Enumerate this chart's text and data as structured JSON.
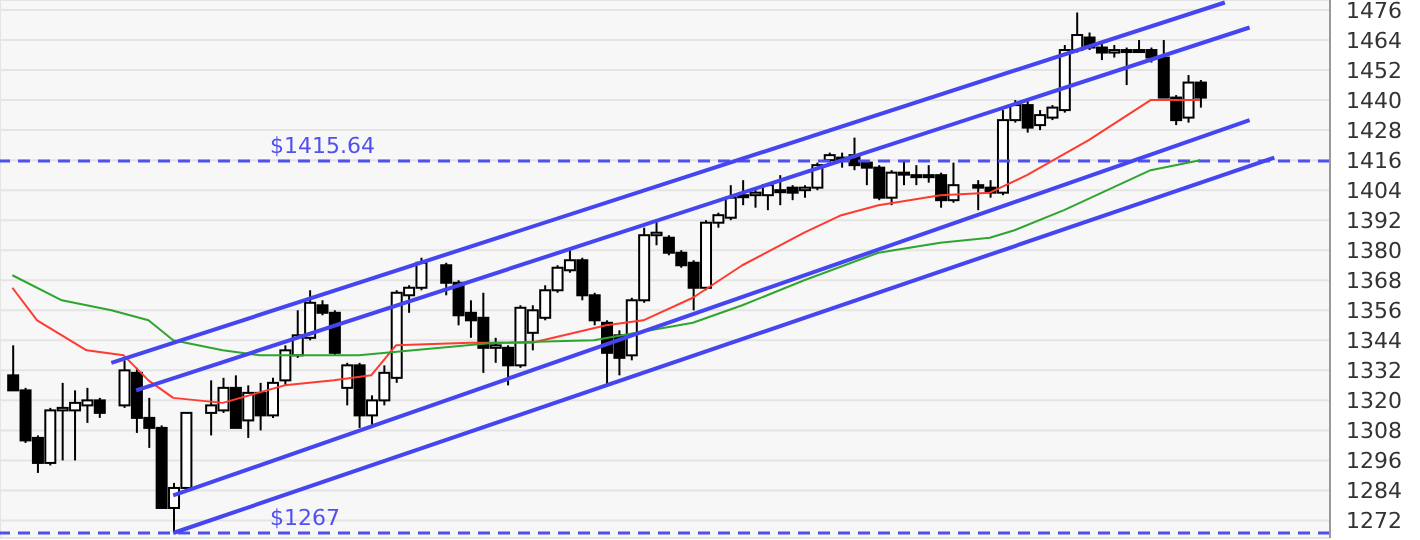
{
  "chart_data": {
    "type": "candlestick",
    "color": "#000000",
    "categories": [
      null,
      null,
      null,
      null,
      null,
      null,
      null,
      null,
      null,
      null,
      null,
      null,
      null,
      null,
      null,
      null,
      null,
      null,
      null,
      null,
      null,
      null,
      null,
      null,
      null,
      null,
      null,
      null,
      null,
      null,
      null,
      null,
      null,
      null,
      null,
      null,
      null,
      null,
      null,
      null,
      null,
      null,
      null,
      null,
      null,
      null,
      null,
      null,
      null,
      null,
      null,
      null,
      null,
      null,
      null,
      null,
      null,
      null,
      null,
      null,
      null,
      null,
      null,
      null,
      null,
      null,
      null,
      null,
      null,
      null,
      null,
      null,
      null,
      null,
      null,
      null,
      null,
      null,
      null,
      null,
      null,
      null,
      null,
      null,
      null,
      null,
      null,
      null,
      null,
      null,
      null,
      null,
      null,
      null,
      null,
      null,
      null,
      null,
      null,
      null,
      null,
      null,
      null,
      null,
      null,
      null
    ],
    "ohlc": [
      [
        1330,
        1342,
        1324,
        1324
      ],
      [
        1324,
        1325,
        1303,
        1304
      ],
      [
        1305,
        1306,
        1291,
        1295
      ],
      [
        1295,
        1317,
        1294,
        1316
      ],
      [
        1316,
        1327,
        1296,
        1317
      ],
      [
        1316,
        1324,
        1296,
        1319
      ],
      [
        1318,
        1325,
        1311,
        1320
      ],
      [
        1320,
        1321,
        1313,
        1315
      ],
      null,
      [
        1318,
        1336,
        1317,
        1332
      ],
      [
        1331,
        1333,
        1307,
        1313
      ],
      [
        1313,
        1321,
        1301,
        1309
      ],
      [
        1309,
        1310,
        1277,
        1277
      ],
      [
        1277,
        1287,
        1267,
        1285
      ],
      [
        1285,
        1315,
        1284,
        1315
      ],
      null,
      [
        1315,
        1328,
        1306,
        1318
      ],
      [
        1316,
        1329,
        1315,
        1325
      ],
      [
        1325,
        1330,
        1309,
        1309
      ],
      [
        1312,
        1326,
        1305,
        1323
      ],
      [
        1323,
        1327,
        1308,
        1314
      ],
      [
        1314,
        1329,
        1313,
        1327
      ],
      [
        1328,
        1342,
        1326,
        1340
      ],
      [
        1338,
        1356,
        1337,
        1346
      ],
      [
        1345,
        1364,
        1344,
        1359
      ],
      [
        1358,
        1360,
        1354,
        1355
      ],
      [
        1355,
        1356,
        1338,
        1339
      ],
      [
        1325,
        1335,
        1318,
        1334
      ],
      [
        1334,
        1335,
        1309,
        1314
      ],
      [
        1314,
        1322,
        1310,
        1320
      ],
      [
        1320,
        1334,
        1318,
        1331
      ],
      [
        1329,
        1364,
        1327,
        1363
      ],
      [
        1362,
        1366,
        1355,
        1365
      ],
      [
        1365,
        1377,
        1364,
        1375
      ],
      null,
      [
        1374,
        1375,
        1362,
        1367
      ],
      [
        1367,
        1368,
        1350,
        1354
      ],
      [
        1355,
        1360,
        1345,
        1352
      ],
      [
        1353,
        1363,
        1331,
        1341
      ],
      [
        1341,
        1345,
        1335,
        1342
      ],
      [
        1341,
        1342,
        1326,
        1334
      ],
      [
        1334,
        1358,
        1333,
        1357
      ],
      [
        1347,
        1358,
        1340,
        1356
      ],
      [
        1353,
        1366,
        1352,
        1364
      ],
      [
        1364,
        1374,
        1363,
        1373
      ],
      [
        1372,
        1381,
        1371,
        1376
      ],
      [
        1376,
        1377,
        1360,
        1362
      ],
      [
        1362,
        1363,
        1350,
        1352
      ],
      [
        1351,
        1352,
        1326,
        1339
      ],
      [
        1346,
        1348,
        1330,
        1337
      ],
      [
        1338,
        1361,
        1336,
        1360
      ],
      [
        1360,
        1389,
        1359,
        1386
      ],
      [
        1386,
        1392,
        1382,
        1387
      ],
      [
        1385,
        1386,
        1378,
        1379
      ],
      [
        1379,
        1380,
        1373,
        1374
      ],
      [
        1375,
        1376,
        1356,
        1365
      ],
      [
        1365,
        1392,
        1364,
        1391
      ],
      [
        1391,
        1395,
        1389,
        1394
      ],
      [
        1393,
        1406,
        1392,
        1401
      ],
      [
        1402,
        1408,
        1398,
        1402
      ],
      [
        1402,
        1404,
        1397,
        1403
      ],
      [
        1402,
        1406,
        1396,
        1406
      ],
      [
        1404,
        1410,
        1398,
        1404
      ],
      [
        1405,
        1406,
        1400,
        1403
      ],
      [
        1404,
        1406,
        1401,
        1405
      ],
      [
        1405,
        1415,
        1404,
        1414
      ],
      [
        1416,
        1419,
        1415,
        1418
      ],
      [
        1417,
        1419,
        1413,
        1417
      ],
      [
        1418,
        1425,
        1412,
        1414
      ],
      [
        1415,
        1416,
        1406,
        1413
      ],
      [
        1413,
        1414,
        1400,
        1401
      ],
      [
        1401,
        1412,
        1398,
        1411
      ],
      [
        1411,
        1416,
        1406,
        1411
      ],
      [
        1410,
        1414,
        1406,
        1410
      ],
      [
        1410,
        1414,
        1407,
        1410
      ],
      [
        1410,
        1411,
        1397,
        1400
      ],
      [
        1400,
        1415,
        1399,
        1406
      ],
      null,
      [
        1406,
        1408,
        1396,
        1405
      ],
      [
        1405,
        1408,
        1401,
        1403
      ],
      [
        1403,
        1436,
        1402,
        1432
      ],
      [
        1432,
        1440,
        1431,
        1438
      ],
      [
        1438,
        1440,
        1427,
        1429
      ],
      [
        1430,
        1436,
        1428,
        1434
      ],
      [
        1433,
        1438,
        1432,
        1437
      ],
      [
        1436,
        1462,
        1435,
        1460
      ],
      [
        1460,
        1475,
        1459,
        1466
      ],
      [
        1465,
        1467,
        1460,
        1461
      ],
      [
        1461,
        1463,
        1456,
        1459
      ],
      [
        1459,
        1462,
        1457,
        1460
      ],
      [
        1460,
        1461,
        1446,
        1460
      ],
      [
        1460,
        1464,
        1459,
        1460
      ],
      [
        1460,
        1461,
        1455,
        1457
      ],
      [
        1457,
        1464,
        1441,
        1441
      ],
      [
        1441,
        1442,
        1430,
        1432
      ],
      [
        1433,
        1450,
        1431,
        1447
      ],
      [
        1447,
        1448,
        1437,
        1441
      ],
      null,
      null,
      null,
      null,
      null,
      null,
      null,
      null,
      null
    ],
    "series": [
      {
        "type": "line",
        "color": "#ff3b30",
        "values": [
          1365,
          null,
          1352,
          null,
          null,
          null,
          1340,
          null,
          null,
          1338,
          null,
          1328,
          null,
          1321,
          null,
          null,
          null,
          1319,
          null,
          null,
          null,
          null,
          1326,
          null,
          null,
          null,
          1328,
          null,
          null,
          1330,
          null,
          1342,
          null,
          null,
          null,
          null,
          null,
          1343,
          null,
          null,
          null,
          null,
          1343,
          null,
          null,
          null,
          null,
          null,
          1350,
          null,
          null,
          1352,
          null,
          null,
          null,
          1361,
          null,
          null,
          null,
          1374,
          null,
          null,
          null,
          null,
          1387,
          null,
          null,
          1394,
          null,
          null,
          1398,
          null,
          null,
          null,
          null,
          1402,
          null,
          null,
          null,
          1403,
          null,
          null,
          1410,
          null,
          null,
          null,
          null,
          1424,
          null,
          null,
          null,
          null,
          1440,
          null,
          null,
          null,
          1440,
          null,
          null,
          null,
          null,
          null,
          null,
          null,
          null,
          null
        ]
      },
      {
        "type": "line",
        "color": "#2ea52e",
        "values": [
          1370,
          null,
          null,
          null,
          1360,
          null,
          null,
          null,
          1356,
          null,
          null,
          1352,
          null,
          1344,
          null,
          null,
          null,
          1340,
          null,
          null,
          1338,
          null,
          null,
          null,
          null,
          null,
          null,
          null,
          1338,
          null,
          null,
          null,
          null,
          null,
          null,
          null,
          null,
          null,
          null,
          1343,
          null,
          null,
          null,
          null,
          null,
          null,
          null,
          1344,
          null,
          null,
          null,
          null,
          null,
          null,
          null,
          1351,
          null,
          null,
          null,
          1358,
          null,
          null,
          null,
          null,
          1368,
          null,
          null,
          null,
          null,
          null,
          1379,
          null,
          null,
          null,
          null,
          1383,
          null,
          null,
          null,
          1385,
          null,
          1388,
          null,
          null,
          null,
          1396,
          null,
          null,
          null,
          null,
          null,
          null,
          1412,
          null,
          null,
          null,
          1416,
          null,
          null,
          null,
          null,
          null,
          null,
          null,
          null,
          null
        ]
      },
      {
        "type": "line",
        "color": "#4646f0",
        "values": [
          null,
          null,
          null,
          null,
          null,
          null,
          null,
          null,
          1335,
          null,
          null,
          null,
          null,
          null,
          null,
          null,
          null,
          null,
          null,
          null,
          null,
          null,
          null,
          null,
          null,
          null,
          null,
          null,
          null,
          null,
          null,
          null,
          null,
          null,
          null,
          null,
          null,
          null,
          null,
          null,
          null,
          null,
          null,
          null,
          null,
          null,
          null,
          null,
          null,
          null,
          null,
          null,
          null,
          null,
          null,
          null,
          null,
          null,
          null,
          null,
          null,
          null,
          null,
          null,
          null,
          null,
          null,
          null,
          null,
          null,
          null,
          null,
          null,
          null,
          null,
          null,
          null,
          null,
          null,
          null,
          null,
          null,
          null,
          null,
          null,
          null,
          null,
          null,
          null,
          null,
          null,
          null,
          null,
          null,
          null,
          null,
          null,
          null,
          1479,
          null,
          null,
          null,
          null,
          null,
          null,
          null
        ]
      },
      {
        "type": "line",
        "color": "#4646f0",
        "values": [
          null,
          null,
          null,
          null,
          null,
          null,
          null,
          null,
          null,
          null,
          1324,
          null,
          null,
          null,
          null,
          null,
          null,
          null,
          null,
          null,
          null,
          null,
          null,
          null,
          null,
          null,
          null,
          null,
          null,
          null,
          null,
          null,
          null,
          null,
          null,
          null,
          null,
          null,
          null,
          null,
          null,
          null,
          null,
          null,
          null,
          null,
          null,
          null,
          null,
          null,
          null,
          null,
          null,
          null,
          null,
          null,
          null,
          null,
          null,
          null,
          null,
          null,
          null,
          null,
          null,
          null,
          null,
          null,
          null,
          null,
          null,
          null,
          null,
          null,
          null,
          null,
          null,
          null,
          null,
          null,
          null,
          null,
          null,
          null,
          null,
          null,
          null,
          null,
          null,
          null,
          null,
          null,
          null,
          null,
          null,
          null,
          null,
          null,
          null,
          null,
          1469,
          null,
          null,
          null,
          null,
          null
        ]
      },
      {
        "type": "line",
        "color": "#4646f0",
        "values": [
          null,
          null,
          null,
          null,
          null,
          null,
          null,
          null,
          null,
          null,
          null,
          null,
          null,
          1282,
          null,
          null,
          null,
          null,
          null,
          null,
          null,
          null,
          null,
          null,
          null,
          null,
          null,
          null,
          null,
          null,
          null,
          null,
          null,
          null,
          null,
          null,
          null,
          null,
          null,
          null,
          null,
          null,
          null,
          null,
          null,
          null,
          null,
          null,
          null,
          null,
          null,
          null,
          null,
          null,
          null,
          null,
          null,
          null,
          null,
          null,
          null,
          null,
          null,
          null,
          null,
          null,
          null,
          null,
          null,
          null,
          null,
          null,
          null,
          null,
          null,
          null,
          null,
          null,
          null,
          null,
          null,
          null,
          null,
          null,
          null,
          null,
          null,
          null,
          null,
          null,
          null,
          null,
          null,
          null,
          null,
          null,
          null,
          null,
          null,
          null,
          1432,
          null,
          null,
          null,
          null,
          null
        ]
      },
      {
        "type": "line",
        "color": "#4646f0",
        "values": [
          null,
          null,
          null,
          null,
          null,
          null,
          null,
          null,
          null,
          null,
          null,
          null,
          null,
          1267,
          null,
          null,
          null,
          null,
          null,
          null,
          null,
          null,
          null,
          null,
          null,
          null,
          null,
          null,
          null,
          null,
          null,
          null,
          null,
          null,
          null,
          null,
          null,
          null,
          null,
          null,
          null,
          null,
          null,
          null,
          null,
          null,
          null,
          null,
          null,
          null,
          null,
          null,
          null,
          null,
          null,
          null,
          null,
          null,
          null,
          null,
          null,
          null,
          null,
          null,
          null,
          null,
          null,
          null,
          null,
          null,
          null,
          null,
          null,
          null,
          null,
          null,
          null,
          null,
          null,
          null,
          null,
          null,
          null,
          null,
          null,
          null,
          null,
          null,
          null,
          null,
          null,
          null,
          null,
          null,
          null,
          null,
          null,
          null,
          null,
          null,
          null,
          null,
          1417,
          null,
          null,
          null
        ]
      }
    ],
    "ref_lines": [
      {
        "axis": "y",
        "value": 1415.64,
        "label": "$1415.64",
        "color": "#5050ee",
        "line_style": "dashed"
      },
      {
        "axis": "y",
        "value": 1267,
        "label": "$1267",
        "color": "#5050ee",
        "line_style": "dashed"
      }
    ],
    "ylim": [
      1265,
      1480
    ],
    "yticks": [
      1272,
      1284,
      1296,
      1308,
      1320,
      1332,
      1344,
      1356,
      1368,
      1380,
      1392,
      1404,
      1416,
      1428,
      1440,
      1452,
      1464,
      1476
    ],
    "grid": true,
    "tick_labels": "y"
  }
}
